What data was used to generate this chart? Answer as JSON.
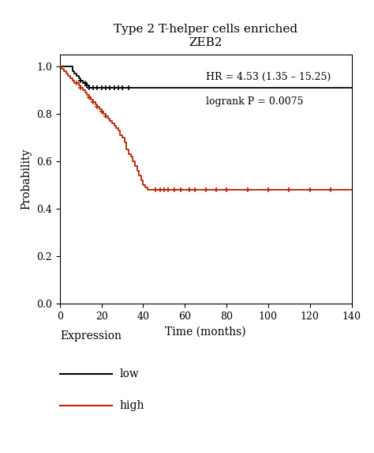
{
  "title_line1": "Type 2 T-helper cells enriched",
  "title_line2": "ZEB2",
  "xlabel": "Time (months)",
  "ylabel": "Probability",
  "xlim": [
    0,
    140
  ],
  "ylim": [
    0.0,
    1.05
  ],
  "xticks": [
    0,
    20,
    40,
    60,
    80,
    100,
    120,
    140
  ],
  "yticks": [
    0.0,
    0.2,
    0.4,
    0.6,
    0.8,
    1.0
  ],
  "annotation_line1": "HR = 4.53 (1.35 – 15.25)",
  "annotation_line2": "logrank P = 0.0075",
  "legend_title": "Expression",
  "legend_items": [
    "low",
    "high"
  ],
  "low_color": "#000000",
  "high_color": "#bb2200",
  "low_x": [
    0,
    5,
    6,
    7,
    8,
    9,
    10,
    11,
    13,
    14,
    15,
    16,
    17,
    18,
    20,
    140
  ],
  "low_y": [
    1.0,
    1.0,
    0.98,
    0.97,
    0.96,
    0.95,
    0.94,
    0.93,
    0.92,
    0.91,
    0.91,
    0.91,
    0.91,
    0.91,
    0.91,
    0.91
  ],
  "low_censor_x": [
    10,
    12,
    13,
    14,
    16,
    18,
    20,
    22,
    24,
    26,
    28,
    30,
    33
  ],
  "low_censor_y": [
    0.94,
    0.93,
    0.92,
    0.91,
    0.91,
    0.91,
    0.91,
    0.91,
    0.91,
    0.91,
    0.91,
    0.91,
    0.91
  ],
  "high_x": [
    0,
    1,
    2,
    3,
    4,
    5,
    6,
    7,
    8,
    9,
    10,
    11,
    12,
    13,
    14,
    15,
    16,
    17,
    18,
    19,
    20,
    21,
    22,
    23,
    24,
    25,
    26,
    27,
    28,
    29,
    30,
    31,
    32,
    33,
    34,
    35,
    36,
    37,
    38,
    39,
    40,
    41,
    42,
    43,
    44,
    45,
    140
  ],
  "high_y": [
    1.0,
    0.99,
    0.98,
    0.97,
    0.96,
    0.95,
    0.94,
    0.93,
    0.93,
    0.92,
    0.91,
    0.9,
    0.89,
    0.88,
    0.87,
    0.86,
    0.85,
    0.84,
    0.83,
    0.82,
    0.81,
    0.8,
    0.79,
    0.78,
    0.77,
    0.76,
    0.75,
    0.74,
    0.73,
    0.71,
    0.7,
    0.68,
    0.65,
    0.63,
    0.62,
    0.6,
    0.58,
    0.56,
    0.54,
    0.52,
    0.5,
    0.49,
    0.48,
    0.48,
    0.48,
    0.48,
    0.48
  ],
  "high_censor_x": [
    8,
    10,
    14,
    16,
    18,
    20,
    22,
    46,
    48,
    50,
    52,
    55,
    58,
    62,
    65,
    70,
    75,
    80,
    90,
    100,
    110,
    120,
    130
  ],
  "high_censor_y": [
    0.93,
    0.91,
    0.87,
    0.85,
    0.83,
    0.81,
    0.79,
    0.48,
    0.48,
    0.48,
    0.48,
    0.48,
    0.48,
    0.48,
    0.48,
    0.48,
    0.48,
    0.48,
    0.48,
    0.48,
    0.48,
    0.48,
    0.48
  ],
  "background_color": "#ffffff",
  "fig_width": 4.74,
  "fig_height": 5.73,
  "dpi": 100
}
